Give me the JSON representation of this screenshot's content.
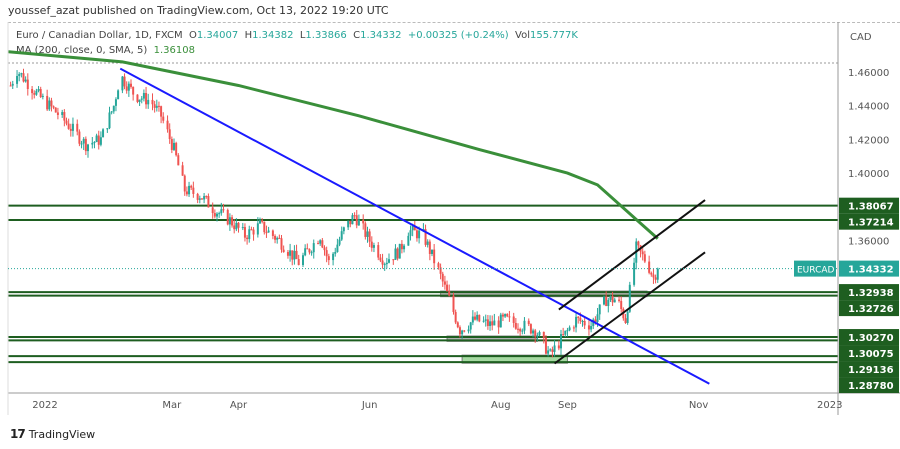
{
  "header": {
    "published": "youssef_azat published on TradingView.com, Oct 13, 2022 19:20 UTC",
    "symbol_desc": "Euro / Canadian Dollar, 1D, FXCM",
    "o_label": "O",
    "o": "1.34007",
    "h_label": "H",
    "h": "1.34382",
    "l_label": "L",
    "l": "1.33866",
    "c_label": "C",
    "c": "1.34332",
    "change": "+0.00325 (+0.24%)",
    "vol_label": "Vol",
    "vol": "155.777K",
    "ma_label": "MA (200, close, 0, SMA, 5)",
    "ma_value": "1.36108"
  },
  "footer": {
    "brand": "TradingView"
  },
  "chart_data": {
    "type": "candlestick",
    "currency": "CAD",
    "symbol_tag": "EURCAD",
    "last_price": 1.34332,
    "ylim": [
      1.276,
      1.476
    ],
    "y_ticks": [
      1.46,
      1.44,
      1.42,
      1.4,
      1.36
    ],
    "y_tick_labels": [
      "1.46000",
      "1.44000",
      "1.42000",
      "1.40000",
      "1.36000"
    ],
    "x_range": [
      "2021-12-15",
      "2023-01-12"
    ],
    "x_ticks": [
      {
        "date": "2022-01-01",
        "label": "2022"
      },
      {
        "date": "2022-03-01",
        "label": "Mar"
      },
      {
        "date": "2022-04-01",
        "label": "Apr"
      },
      {
        "date": "2022-06-01",
        "label": "Jun"
      },
      {
        "date": "2022-08-01",
        "label": "Aug"
      },
      {
        "date": "2022-09-01",
        "label": "Sep"
      },
      {
        "date": "2022-11-01",
        "label": "Nov"
      },
      {
        "date": "2023-01-01",
        "label": "2023"
      }
    ],
    "closes": [
      [
        "2021-12-16",
        1.452
      ],
      [
        "2021-12-19",
        1.461
      ],
      [
        "2021-12-29",
        1.446
      ],
      [
        "2022-01-08",
        1.434
      ],
      [
        "2022-01-20",
        1.417
      ],
      [
        "2022-01-27",
        1.42
      ],
      [
        "2022-02-02",
        1.44
      ],
      [
        "2022-02-05",
        1.458
      ],
      [
        "2022-02-12",
        1.446
      ],
      [
        "2022-02-19",
        1.443
      ],
      [
        "2022-02-24",
        1.434
      ],
      [
        "2022-03-02",
        1.414
      ],
      [
        "2022-03-07",
        1.39
      ],
      [
        "2022-03-14",
        1.387
      ],
      [
        "2022-03-21",
        1.378
      ],
      [
        "2022-03-28",
        1.372
      ],
      [
        "2022-04-04",
        1.363
      ],
      [
        "2022-04-11",
        1.369
      ],
      [
        "2022-04-20",
        1.36
      ],
      [
        "2022-04-29",
        1.347
      ],
      [
        "2022-05-09",
        1.363
      ],
      [
        "2022-05-13",
        1.347
      ],
      [
        "2022-05-20",
        1.366
      ],
      [
        "2022-05-25",
        1.375
      ],
      [
        "2022-06-01",
        1.36
      ],
      [
        "2022-06-08",
        1.348
      ],
      [
        "2022-06-15",
        1.354
      ],
      [
        "2022-06-19",
        1.366
      ],
      [
        "2022-06-26",
        1.363
      ],
      [
        "2022-07-03",
        1.342
      ],
      [
        "2022-07-08",
        1.325
      ],
      [
        "2022-07-13",
        1.307
      ],
      [
        "2022-07-20",
        1.313
      ],
      [
        "2022-07-27",
        1.31
      ],
      [
        "2022-08-03",
        1.313
      ],
      [
        "2022-08-10",
        1.31
      ],
      [
        "2022-08-17",
        1.307
      ],
      [
        "2022-08-24",
        1.292
      ],
      [
        "2022-08-29",
        1.301
      ],
      [
        "2022-09-05",
        1.313
      ],
      [
        "2022-09-12",
        1.31
      ],
      [
        "2022-09-19",
        1.325
      ],
      [
        "2022-09-24",
        1.325
      ],
      [
        "2022-09-28",
        1.313
      ],
      [
        "2022-10-03",
        1.3555
      ],
      [
        "2022-10-08",
        1.347
      ],
      [
        "2022-10-11",
        1.338
      ],
      [
        "2022-10-13",
        1.34332
      ]
    ],
    "ma200": [
      [
        "2021-12-15",
        1.472
      ],
      [
        "2022-02-06",
        1.466
      ],
      [
        "2022-04-01",
        1.452
      ],
      [
        "2022-05-27",
        1.434
      ],
      [
        "2022-07-22",
        1.414
      ],
      [
        "2022-09-15",
        1.393
      ],
      [
        "2022-10-13",
        1.3611
      ],
      [
        "2022-09-01",
        1.4
      ]
    ],
    "ma_color": "#3a8f3a",
    "up_color": "#26a69a",
    "down_color": "#ef5350",
    "levels": [
      {
        "value": 1.38067,
        "label": "1.38067"
      },
      {
        "value": 1.37214,
        "label": "1.37214"
      },
      {
        "value": 1.32938,
        "label": "1.32938"
      },
      {
        "value": 1.32726,
        "label": "1.32726"
      },
      {
        "value": 1.3027,
        "label": "1.30270"
      },
      {
        "value": 1.30075,
        "label": "1.30075"
      },
      {
        "value": 1.29136,
        "label": "1.29136"
      },
      {
        "value": 1.2878,
        "label": "1.28780"
      }
    ],
    "level_color": "#1e5e20",
    "trendlines": [
      {
        "name": "downtrend",
        "color": "#1a1aff",
        "from": [
          "2022-02-05",
          1.462
        ],
        "to": [
          "2022-11-06",
          1.275
        ]
      },
      {
        "name": "channel-upper",
        "color": "#111111",
        "from": [
          "2022-08-28",
          1.319
        ],
        "to": [
          "2022-11-04",
          1.384
        ]
      },
      {
        "name": "channel-lower",
        "color": "#111111",
        "from": [
          "2022-08-26",
          1.287
        ],
        "to": [
          "2022-11-04",
          1.353
        ]
      }
    ],
    "zones": [
      {
        "from": "2022-07-04",
        "to": "2022-10-08",
        "top": 1.32938,
        "bottom": 1.32726,
        "color": "#9e9e9e"
      },
      {
        "from": "2022-07-07",
        "to": "2022-08-18",
        "top": 1.3027,
        "bottom": 1.30075,
        "color": "#9e9e9e"
      },
      {
        "from": "2022-07-14",
        "to": "2022-09-01",
        "top": 1.29136,
        "bottom": 1.2878,
        "color": "#8fcf8a"
      }
    ]
  }
}
